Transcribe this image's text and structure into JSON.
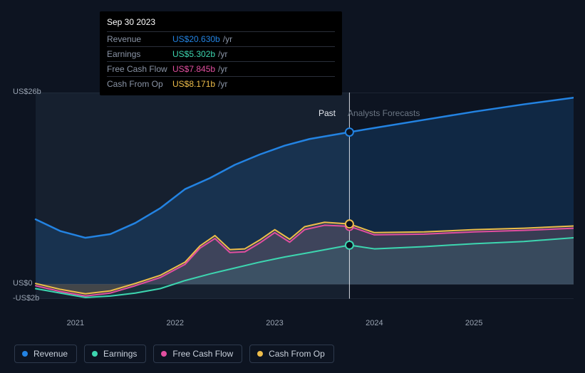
{
  "chart": {
    "type": "line-area",
    "background_color": "#0d1421",
    "plot_background_past": "#16202f",
    "plot_background_fore": "#0d1421",
    "grid_color": "#2a3545",
    "hover_line_color": "#eceff4",
    "xlim": [
      2020.6,
      2026.0
    ],
    "ylim": [
      -2,
      26
    ],
    "x_start": 2020.6,
    "x_range": 5.4,
    "y_min": -2,
    "y_range": 28,
    "y_ticks": [
      {
        "v": 26,
        "label": "US$26b"
      },
      {
        "v": 0,
        "label": "US$0"
      },
      {
        "v": -2,
        "label": "-US$2b"
      }
    ],
    "x_ticks": [
      {
        "v": 2021,
        "label": "2021"
      },
      {
        "v": 2022,
        "label": "2022"
      },
      {
        "v": 2023,
        "label": "2023"
      },
      {
        "v": 2024,
        "label": "2024"
      },
      {
        "v": 2025,
        "label": "2025"
      }
    ],
    "divider_x": 2023.75,
    "past_label": "Past",
    "forecast_label": "Analysts Forecasts",
    "hover_x": 2023.75,
    "series": [
      {
        "key": "revenue",
        "name": "Revenue",
        "color": "#2383e2",
        "fill": "rgba(35,131,226,0.18)",
        "width": 2.5,
        "points": [
          [
            2020.6,
            8.8
          ],
          [
            2020.85,
            7.2
          ],
          [
            2021.1,
            6.3
          ],
          [
            2021.35,
            6.8
          ],
          [
            2021.6,
            8.3
          ],
          [
            2021.85,
            10.3
          ],
          [
            2022.1,
            12.9
          ],
          [
            2022.35,
            14.4
          ],
          [
            2022.6,
            16.2
          ],
          [
            2022.85,
            17.6
          ],
          [
            2023.1,
            18.8
          ],
          [
            2023.35,
            19.7
          ],
          [
            2023.75,
            20.63
          ],
          [
            2024.0,
            21.2
          ],
          [
            2024.5,
            22.3
          ],
          [
            2025.0,
            23.4
          ],
          [
            2025.5,
            24.4
          ],
          [
            2026.0,
            25.3
          ]
        ]
      },
      {
        "key": "cash_from_op",
        "name": "Cash From Op",
        "color": "#eebd4a",
        "fill": "rgba(238,189,74,0.12)",
        "width": 2,
        "points": [
          [
            2020.6,
            0.1
          ],
          [
            2020.85,
            -0.7
          ],
          [
            2021.1,
            -1.3
          ],
          [
            2021.35,
            -0.9
          ],
          [
            2021.6,
            0.1
          ],
          [
            2021.85,
            1.2
          ],
          [
            2022.1,
            3.0
          ],
          [
            2022.25,
            5.2
          ],
          [
            2022.4,
            6.6
          ],
          [
            2022.55,
            4.7
          ],
          [
            2022.7,
            4.8
          ],
          [
            2022.85,
            6.0
          ],
          [
            2023.0,
            7.4
          ],
          [
            2023.15,
            6.1
          ],
          [
            2023.3,
            7.8
          ],
          [
            2023.5,
            8.4
          ],
          [
            2023.75,
            8.17
          ],
          [
            2024.0,
            7.0
          ],
          [
            2024.5,
            7.1
          ],
          [
            2025.0,
            7.4
          ],
          [
            2025.5,
            7.6
          ],
          [
            2026.0,
            7.9
          ]
        ]
      },
      {
        "key": "free_cash_flow",
        "name": "Free Cash Flow",
        "color": "#e24fa0",
        "fill": "rgba(226,79,160,0.12)",
        "width": 2,
        "points": [
          [
            2020.6,
            -0.2
          ],
          [
            2020.85,
            -1.0
          ],
          [
            2021.1,
            -1.6
          ],
          [
            2021.35,
            -1.2
          ],
          [
            2021.6,
            -0.2
          ],
          [
            2021.85,
            0.9
          ],
          [
            2022.1,
            2.7
          ],
          [
            2022.25,
            4.9
          ],
          [
            2022.4,
            6.2
          ],
          [
            2022.55,
            4.3
          ],
          [
            2022.7,
            4.4
          ],
          [
            2022.85,
            5.6
          ],
          [
            2023.0,
            7.0
          ],
          [
            2023.15,
            5.7
          ],
          [
            2023.3,
            7.4
          ],
          [
            2023.5,
            8.0
          ],
          [
            2023.75,
            7.85
          ],
          [
            2024.0,
            6.7
          ],
          [
            2024.5,
            6.8
          ],
          [
            2025.0,
            7.1
          ],
          [
            2025.5,
            7.3
          ],
          [
            2026.0,
            7.6
          ]
        ]
      },
      {
        "key": "earnings",
        "name": "Earnings",
        "color": "#3dd6b0",
        "fill": "rgba(61,214,176,0.10)",
        "width": 2,
        "points": [
          [
            2020.6,
            -0.6
          ],
          [
            2020.85,
            -1.2
          ],
          [
            2021.1,
            -1.8
          ],
          [
            2021.35,
            -1.6
          ],
          [
            2021.6,
            -1.2
          ],
          [
            2021.85,
            -0.6
          ],
          [
            2022.1,
            0.5
          ],
          [
            2022.35,
            1.4
          ],
          [
            2022.6,
            2.2
          ],
          [
            2022.85,
            3.0
          ],
          [
            2023.1,
            3.7
          ],
          [
            2023.35,
            4.3
          ],
          [
            2023.75,
            5.3
          ],
          [
            2024.0,
            4.8
          ],
          [
            2024.5,
            5.1
          ],
          [
            2025.0,
            5.5
          ],
          [
            2025.5,
            5.8
          ],
          [
            2026.0,
            6.3
          ]
        ]
      }
    ],
    "hover_markers": [
      {
        "series": "revenue",
        "y": 20.63,
        "color": "#2383e2"
      },
      {
        "series": "earnings",
        "y": 5.3,
        "color": "#3dd6b0"
      },
      {
        "series": "free_cash_flow",
        "y": 7.85,
        "color": "#e24fa0"
      },
      {
        "series": "cash_from_op",
        "y": 8.17,
        "color": "#eebd4a"
      }
    ]
  },
  "tooltip": {
    "date": "Sep 30 2023",
    "unit": "/yr",
    "rows": [
      {
        "label": "Revenue",
        "value": "US$20.630b",
        "color": "#2383e2"
      },
      {
        "label": "Earnings",
        "value": "US$5.302b",
        "color": "#3dd6b0"
      },
      {
        "label": "Free Cash Flow",
        "value": "US$7.845b",
        "color": "#e24fa0"
      },
      {
        "label": "Cash From Op",
        "value": "US$8.171b",
        "color": "#eebd4a"
      }
    ]
  },
  "legend": [
    {
      "label": "Revenue",
      "color": "#2383e2"
    },
    {
      "label": "Earnings",
      "color": "#3dd6b0"
    },
    {
      "label": "Free Cash Flow",
      "color": "#e24fa0"
    },
    {
      "label": "Cash From Op",
      "color": "#eebd4a"
    }
  ]
}
